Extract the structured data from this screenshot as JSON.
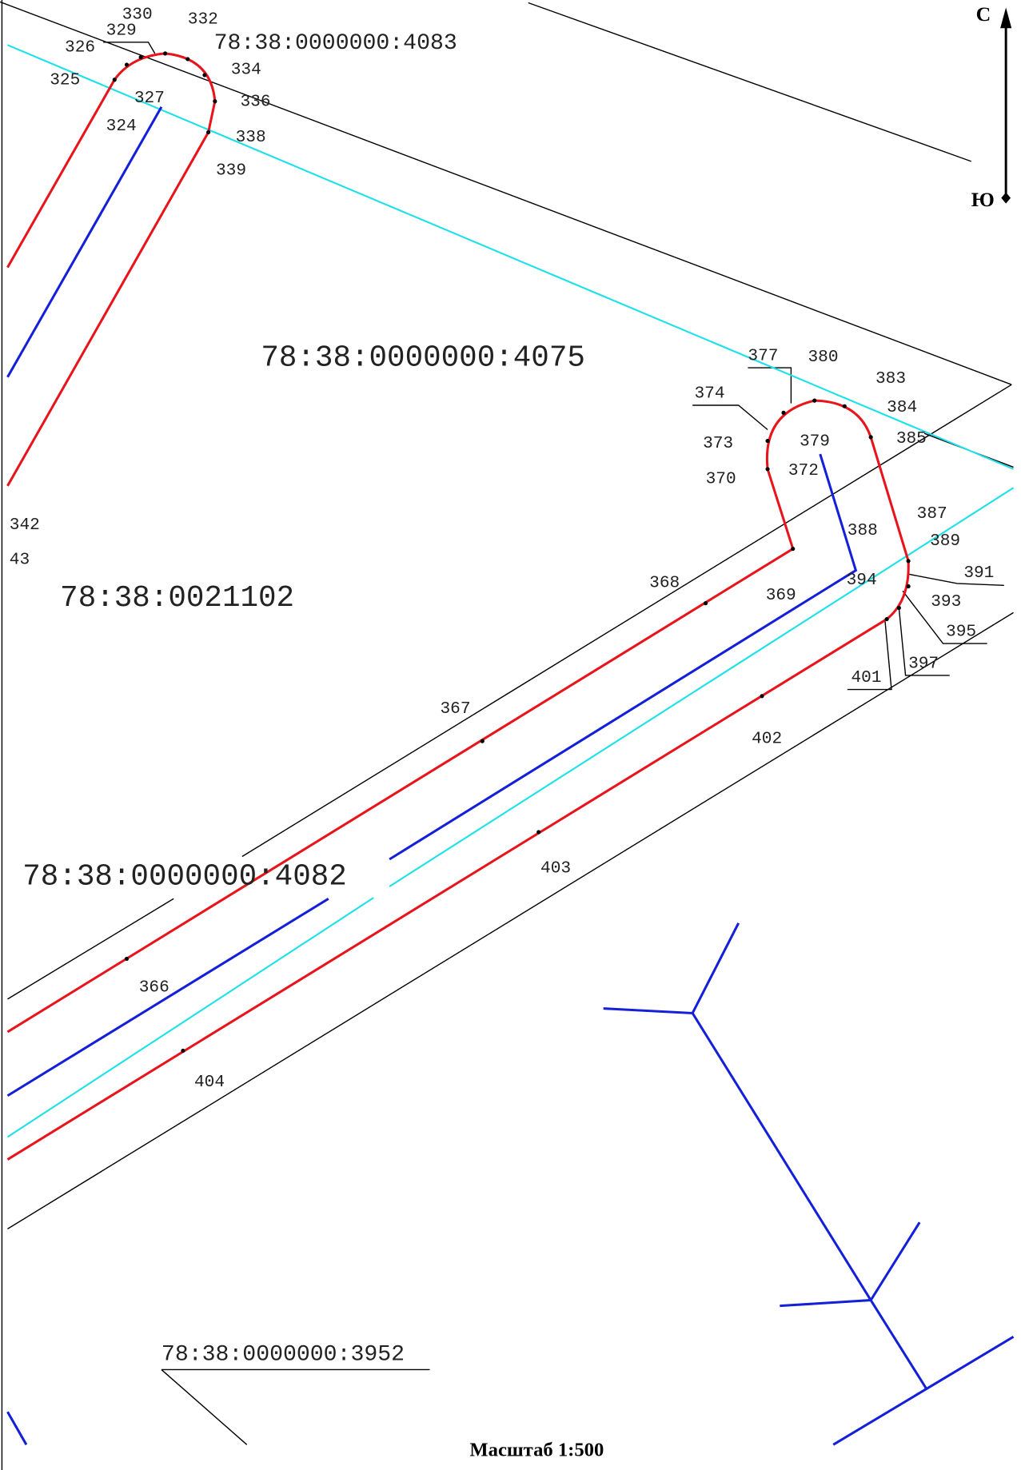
{
  "cadastral_numbers": [
    "78:38:0000000:4083",
    "78:38:0000000:4075",
    "78:38:0021102",
    "78:38:0000000:4082",
    "78:38:0000000:3952"
  ],
  "point_labels": [
    "330",
    "329",
    "332",
    "326",
    "334",
    "325",
    "327",
    "336",
    "324",
    "338",
    "339",
    "342",
    "43",
    "377",
    "380",
    "374",
    "383",
    "384",
    "373",
    "379",
    "385",
    "372",
    "370",
    "387",
    "388",
    "389",
    "368",
    "391",
    "394",
    "369",
    "393",
    "395",
    "397",
    "401",
    "367",
    "402",
    "403",
    "366",
    "404"
  ],
  "compass": {
    "north": "С",
    "south": "Ю"
  },
  "scale": "Масштаб 1:500"
}
